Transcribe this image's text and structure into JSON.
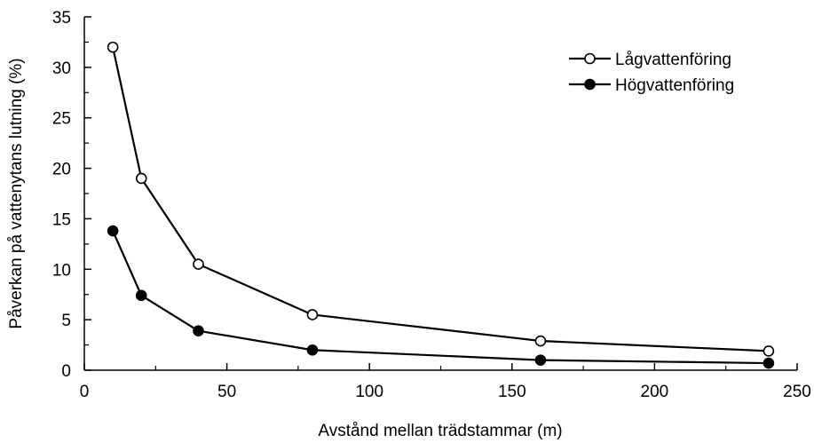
{
  "chart_data": {
    "type": "line",
    "title": "",
    "xlabel": "Avstånd mellan trädstammar (m)",
    "ylabel": "Påverkan på vattenytans lutning (%)",
    "xlim": [
      0,
      250
    ],
    "ylim": [
      0,
      35
    ],
    "xticks": [
      "0",
      "50",
      "100",
      "150",
      "200",
      "250"
    ],
    "yticks": [
      "0",
      "5",
      "10",
      "15",
      "20",
      "25",
      "30",
      "35"
    ],
    "grid": false,
    "legend_position": "top-right",
    "series": [
      {
        "name": "Lågvattenföring",
        "marker": "open-circle",
        "color": "#000000",
        "x": [
          10,
          20,
          40,
          80,
          160,
          240
        ],
        "y": [
          32,
          19,
          10.5,
          5.5,
          2.9,
          1.9
        ]
      },
      {
        "name": "Högvattenföring",
        "marker": "filled-circle",
        "color": "#000000",
        "x": [
          10,
          20,
          40,
          80,
          160,
          240
        ],
        "y": [
          13.8,
          7.4,
          3.9,
          2.0,
          1.0,
          0.7
        ]
      }
    ]
  }
}
